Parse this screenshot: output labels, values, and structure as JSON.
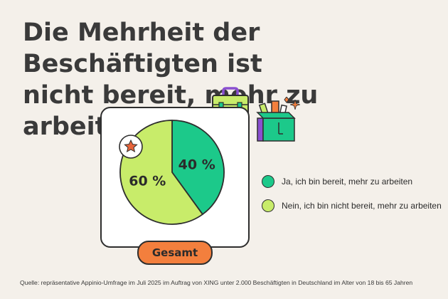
{
  "title_lines": [
    "Die Mehrheit der Beschäftigten ist",
    "nicht bereit, mehr zu arbeiten"
  ],
  "colors": {
    "yes": "#1cc98a",
    "no": "#c8ec6a",
    "outline": "#2e2e2e",
    "accent": "#f37f3d",
    "badge": "#e8643a"
  },
  "icons": [
    "star-icon",
    "briefcase-icon",
    "box-with-tools-icon",
    "sparkle-icon"
  ],
  "chart_data": {
    "type": "pie",
    "slices": [
      {
        "label": "Ja, ich bin bereit, mehr zu arbeiten",
        "value": 40,
        "value_label": "40 %",
        "color": "#1cc98a"
      },
      {
        "label": "Nein, ich bin nicht bereit, mehr zu arbeiten",
        "value": 60,
        "value_label": "60 %",
        "color": "#c8ec6a"
      }
    ],
    "category": "Gesamt",
    "legend": [
      "Ja, ich bin bereit, mehr zu arbeiten",
      "Nein, ich bin nicht bereit, mehr zu arbeiten"
    ],
    "legend_position": "right"
  },
  "source": "Quelle: repräsentative Appinio-Umfrage im Juli 2025 im Auftrag von XING unter 2.000 Beschäftigten in Deutschland im Alter von 18 bis 65 Jahren"
}
